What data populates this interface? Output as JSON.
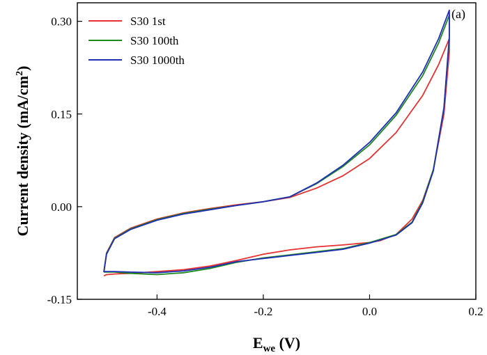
{
  "chart_data": {
    "type": "line",
    "panel_label": "(a)",
    "xlabel": "E",
    "xlabel_sub": "we",
    "xlabel_unit": " (V)",
    "ylabel": "Current density (mA/cm",
    "ylabel_sup": "2",
    "ylabel_end": ")",
    "xlim": [
      -0.55,
      0.2
    ],
    "ylim": [
      -0.15,
      0.33
    ],
    "xticks": [
      -0.4,
      -0.2,
      0.0,
      0.2
    ],
    "xtick_labels": [
      "-0.4",
      "-0.2",
      "0.0",
      "0.2"
    ],
    "yticks": [
      -0.15,
      0.0,
      0.15,
      0.3
    ],
    "ytick_labels": [
      "-0.15",
      "0.00",
      "0.15",
      "0.30"
    ],
    "legend_position": "top-left",
    "series": [
      {
        "name": "S30 1st",
        "color": "#e8312f",
        "x": [
          -0.5,
          -0.495,
          -0.48,
          -0.45,
          -0.4,
          -0.35,
          -0.3,
          -0.25,
          -0.2,
          -0.15,
          -0.1,
          -0.05,
          0.0,
          0.05,
          0.1,
          0.13,
          0.15,
          0.15,
          0.14,
          0.12,
          0.1,
          0.08,
          0.05,
          0.02,
          0.0,
          -0.05,
          -0.1,
          -0.15,
          -0.2,
          -0.25,
          -0.3,
          -0.35,
          -0.4,
          -0.45,
          -0.48,
          -0.495,
          -0.5
        ],
        "y": [
          -0.105,
          -0.075,
          -0.05,
          -0.035,
          -0.02,
          -0.01,
          -0.003,
          0.003,
          0.008,
          0.015,
          0.03,
          0.05,
          0.078,
          0.12,
          0.18,
          0.23,
          0.272,
          0.25,
          0.15,
          0.06,
          0.01,
          -0.02,
          -0.045,
          -0.055,
          -0.058,
          -0.062,
          -0.065,
          -0.07,
          -0.077,
          -0.087,
          -0.096,
          -0.102,
          -0.105,
          -0.108,
          -0.109,
          -0.11,
          -0.112
        ]
      },
      {
        "name": "S30 100th",
        "color": "#1a8a1a",
        "x": [
          -0.5,
          -0.495,
          -0.48,
          -0.45,
          -0.4,
          -0.35,
          -0.3,
          -0.25,
          -0.2,
          -0.15,
          -0.1,
          -0.05,
          0.0,
          0.05,
          0.1,
          0.13,
          0.15,
          0.15,
          0.14,
          0.12,
          0.1,
          0.08,
          0.05,
          0.02,
          0.0,
          -0.05,
          -0.1,
          -0.15,
          -0.2,
          -0.25,
          -0.3,
          -0.35,
          -0.4,
          -0.45,
          -0.48,
          -0.495,
          -0.5
        ],
        "y": [
          -0.106,
          -0.076,
          -0.051,
          -0.036,
          -0.021,
          -0.011,
          -0.004,
          0.002,
          0.008,
          0.016,
          0.037,
          0.065,
          0.1,
          0.148,
          0.212,
          0.265,
          0.31,
          0.27,
          0.16,
          0.06,
          0.008,
          -0.025,
          -0.045,
          -0.053,
          -0.058,
          -0.068,
          -0.073,
          -0.078,
          -0.083,
          -0.09,
          -0.1,
          -0.107,
          -0.11,
          -0.108,
          -0.106,
          -0.106,
          -0.106
        ]
      },
      {
        "name": "S30 1000th",
        "color": "#1f2fb5",
        "x": [
          -0.5,
          -0.495,
          -0.48,
          -0.45,
          -0.4,
          -0.35,
          -0.3,
          -0.25,
          -0.2,
          -0.15,
          -0.1,
          -0.05,
          0.0,
          0.05,
          0.1,
          0.13,
          0.15,
          0.15,
          0.14,
          0.12,
          0.1,
          0.08,
          0.05,
          0.02,
          0.0,
          -0.05,
          -0.1,
          -0.15,
          -0.2,
          -0.25,
          -0.3,
          -0.35,
          -0.4,
          -0.45,
          -0.48,
          -0.495,
          -0.5
        ],
        "y": [
          -0.106,
          -0.077,
          -0.052,
          -0.037,
          -0.022,
          -0.012,
          -0.005,
          0.002,
          0.008,
          0.016,
          0.038,
          0.067,
          0.104,
          0.152,
          0.218,
          0.272,
          0.318,
          0.275,
          0.16,
          0.058,
          0.006,
          -0.026,
          -0.046,
          -0.054,
          -0.059,
          -0.069,
          -0.074,
          -0.079,
          -0.084,
          -0.089,
          -0.098,
          -0.104,
          -0.107,
          -0.106,
          -0.105,
          -0.105,
          -0.105
        ]
      }
    ]
  }
}
